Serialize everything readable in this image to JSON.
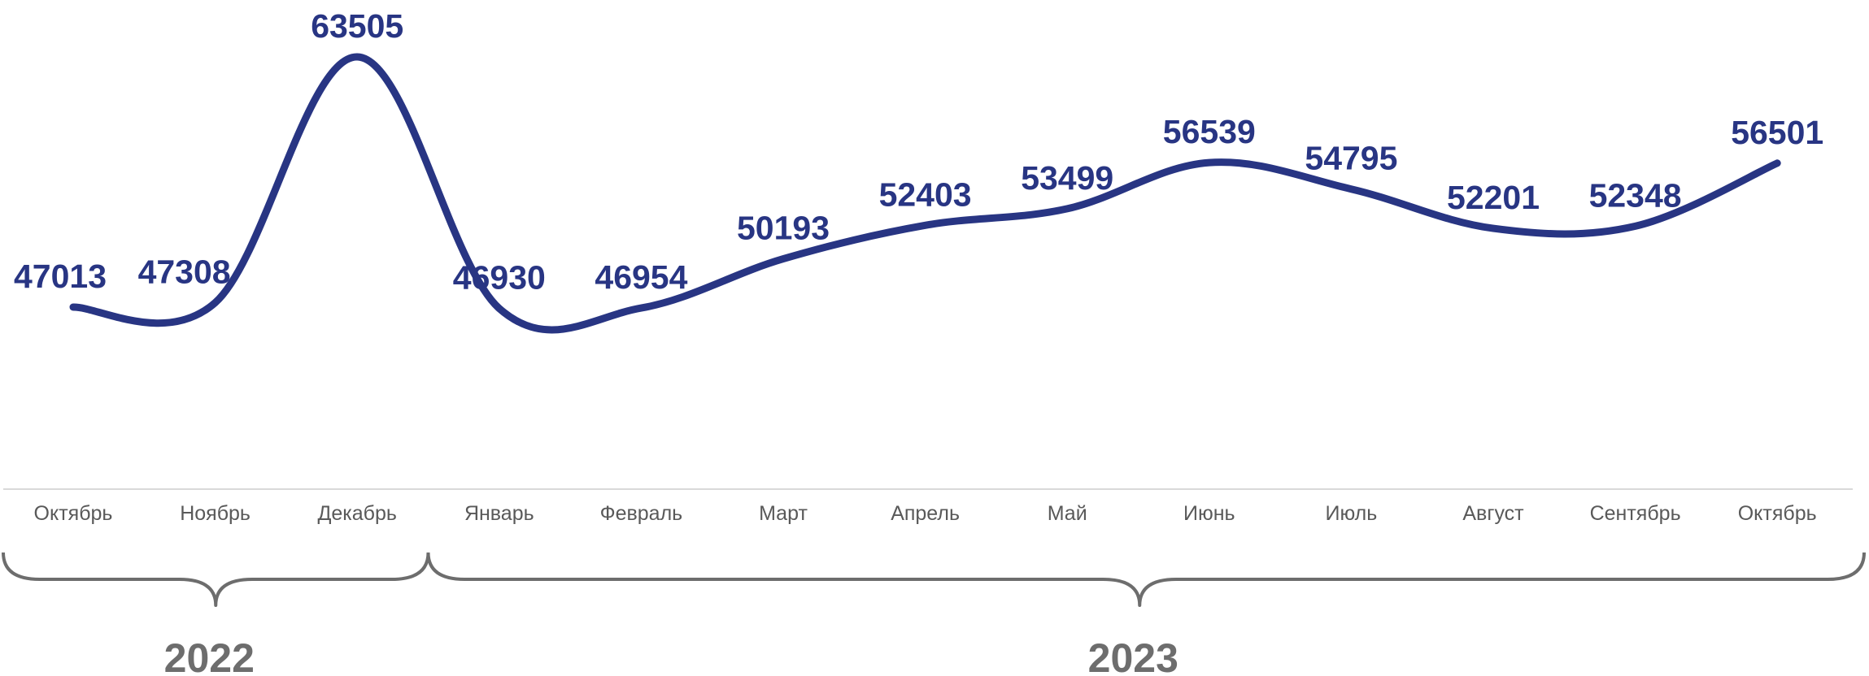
{
  "chart_data": {
    "type": "line",
    "title": "",
    "xlabel": "",
    "ylabel": "",
    "categories": [
      "Октябрь",
      "Ноябрь",
      "Декабрь",
      "Январь",
      "Февраль",
      "Март",
      "Апрель",
      "Май",
      "Июнь",
      "Июль",
      "Август",
      "Сентябрь",
      "Октябрь"
    ],
    "series": [
      {
        "values": [
          47013,
          47308,
          63505,
          46930,
          46954,
          50193,
          52403,
          53499,
          56539,
          54795,
          52201,
          52348,
          56501
        ]
      }
    ],
    "ylim": [
      40000,
      64000
    ],
    "grid": false,
    "legend": "none",
    "smooth": true,
    "data_labels": true,
    "year_groups": [
      {
        "label": "2022",
        "from": 0,
        "to": 2
      },
      {
        "label": "2023",
        "from": 3,
        "to": 12
      }
    ]
  },
  "colors": {
    "line": "#283583",
    "label": "#283583",
    "axis": "#d9d9d9",
    "tick": "#595959",
    "brace": "#6d6d6d",
    "year": "#6d6d6d"
  }
}
